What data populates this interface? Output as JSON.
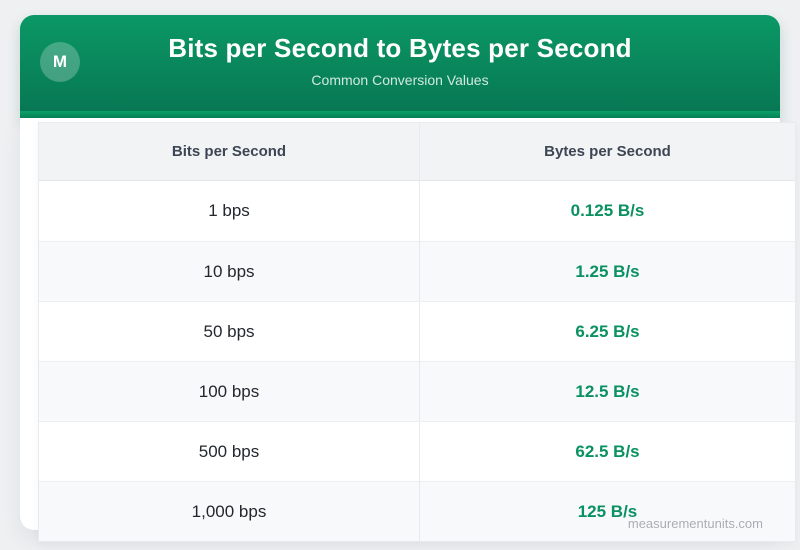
{
  "header": {
    "badge_letter": "M",
    "title": "Bits per Second to Bytes per Second",
    "subtitle": "Common Conversion Values"
  },
  "table": {
    "columns": [
      "Bits per Second",
      "Bytes per Second"
    ],
    "rows": [
      {
        "bits": "1 bps",
        "bytes": "0.125 B/s"
      },
      {
        "bits": "10 bps",
        "bytes": "1.25 B/s"
      },
      {
        "bits": "50 bps",
        "bytes": "6.25 B/s"
      },
      {
        "bits": "100 bps",
        "bytes": "12.5 B/s"
      },
      {
        "bits": "500 bps",
        "bytes": "62.5 B/s"
      },
      {
        "bits": "1,000 bps",
        "bytes": "125 B/s"
      }
    ]
  },
  "footer": {
    "watermark": "measurementunits.com"
  },
  "theme": {
    "header_gradient_top": "#0b9866",
    "header_gradient_bottom": "#077552",
    "header_accent_band": "#0ba169",
    "page_background": "#eef0f2",
    "table_header_background": "#f1f3f5",
    "table_header_text": "#3d4654",
    "row_alt_background": "#f8f9fb",
    "row_border": "#eceef1",
    "bits_text_color": "#23282e",
    "bytes_value_color": "#0a9161",
    "watermark_color": "#a9aeb6"
  },
  "chart_data": {
    "type": "table",
    "title": "Bits per Second to Bytes per Second",
    "subtitle": "Common Conversion Values",
    "columns": [
      "Bits per Second",
      "Bytes per Second"
    ],
    "rows": [
      [
        "1 bps",
        "0.125 B/s"
      ],
      [
        "10 bps",
        "1.25 B/s"
      ],
      [
        "50 bps",
        "6.25 B/s"
      ],
      [
        "100 bps",
        "12.5 B/s"
      ],
      [
        "500 bps",
        "62.5 B/s"
      ],
      [
        "1,000 bps",
        "125 B/s"
      ]
    ],
    "bits_per_second_numeric": [
      1,
      10,
      50,
      100,
      500,
      1000
    ],
    "bytes_per_second_numeric": [
      0.125,
      1.25,
      6.25,
      12.5,
      62.5,
      125
    ],
    "conversion_factor": 0.125,
    "source_watermark": "measurementunits.com"
  }
}
